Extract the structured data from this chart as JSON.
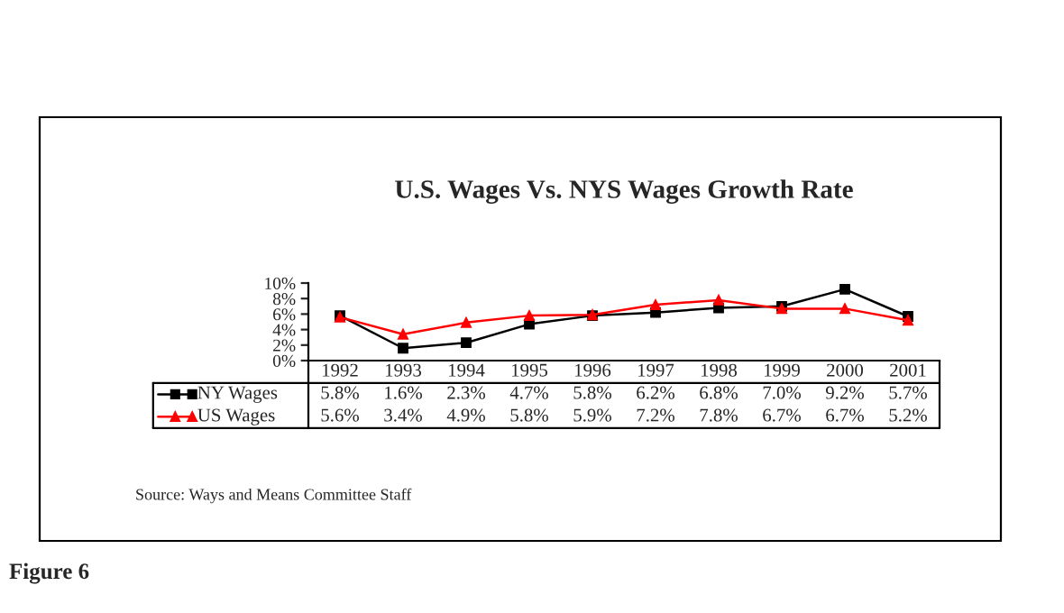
{
  "chart_data": {
    "type": "line",
    "title": "U.S. Wages Vs. NYS Wages Growth Rate",
    "categories": [
      "1992",
      "1993",
      "1994",
      "1995",
      "1996",
      "1997",
      "1998",
      "1999",
      "2000",
      "2001"
    ],
    "series": [
      {
        "name": "NY Wages",
        "color": "#000000",
        "marker": "square",
        "values": [
          5.8,
          1.6,
          2.3,
          4.7,
          5.8,
          6.2,
          6.8,
          7.0,
          9.2,
          5.7
        ],
        "value_labels": [
          "5.8%",
          "1.6%",
          "2.3%",
          "4.7%",
          "5.8%",
          "6.2%",
          "6.8%",
          "7.0%",
          "9.2%",
          "5.7%"
        ]
      },
      {
        "name": "US Wages",
        "color": "#ff0000",
        "marker": "triangle",
        "values": [
          5.6,
          3.4,
          4.9,
          5.8,
          5.9,
          7.2,
          7.8,
          6.7,
          6.7,
          5.2
        ],
        "value_labels": [
          "5.6%",
          "3.4%",
          "4.9%",
          "5.8%",
          "5.9%",
          "7.2%",
          "7.8%",
          "6.7%",
          "6.7%",
          "5.2%"
        ]
      }
    ],
    "ylim": [
      0,
      10
    ],
    "yticks": [
      {
        "value": 0,
        "label": "0%"
      },
      {
        "value": 2,
        "label": "2%"
      },
      {
        "value": 4,
        "label": "4%"
      },
      {
        "value": 6,
        "label": "6%"
      },
      {
        "value": 8,
        "label": "8%"
      },
      {
        "value": 10,
        "label": "10%"
      }
    ],
    "legend": "bottom",
    "grid": false,
    "line_style": "solid",
    "annotations": [
      "Source: Ways and Means Committee Staff",
      "Figure 6"
    ]
  }
}
